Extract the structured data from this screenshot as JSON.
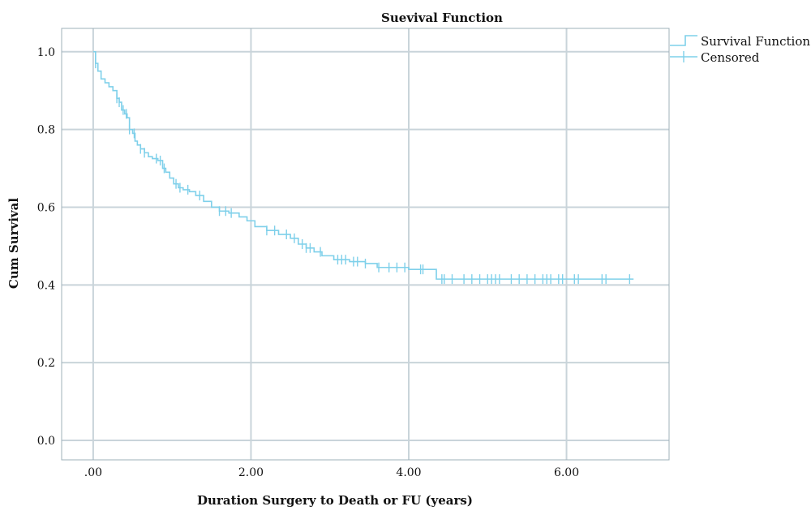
{
  "chart_data": {
    "type": "line",
    "title": "Suevival Function",
    "xlabel": "Duration Surgery to Death or FU (years)",
    "ylabel": "Cum Survival",
    "xlim": [
      -0.4,
      7.3
    ],
    "ylim": [
      -0.05,
      1.06
    ],
    "x_ticks": [
      0,
      2,
      4,
      6
    ],
    "x_tick_labels": [
      ".00",
      "2.00",
      "4.00",
      "6.00"
    ],
    "y_ticks": [
      0.0,
      0.2,
      0.4,
      0.6,
      0.8,
      1.0
    ],
    "y_tick_labels": [
      "0.0",
      "0.2",
      "0.4",
      "0.6",
      "0.8",
      "1.0"
    ],
    "grid": true,
    "legend_position": "top-right",
    "colors": {
      "series": "#7fd0ea",
      "grid": "#c9d4da"
    },
    "series": [
      {
        "name": "Survival Function",
        "kind": "step",
        "x": [
          0,
          0.03,
          0.06,
          0.1,
          0.15,
          0.2,
          0.25,
          0.3,
          0.33,
          0.36,
          0.4,
          0.43,
          0.46,
          0.5,
          0.53,
          0.56,
          0.6,
          0.65,
          0.7,
          0.75,
          0.82,
          0.88,
          0.92,
          0.97,
          1.02,
          1.08,
          1.14,
          1.22,
          1.3,
          1.4,
          1.5,
          1.6,
          1.72,
          1.85,
          1.95,
          2.05,
          2.2,
          2.35,
          2.5,
          2.6,
          2.7,
          2.8,
          2.9,
          3.05,
          3.25,
          3.45,
          3.6,
          4.0,
          4.35,
          6.85
        ],
        "y": [
          1.0,
          0.97,
          0.95,
          0.93,
          0.92,
          0.91,
          0.9,
          0.88,
          0.87,
          0.85,
          0.84,
          0.83,
          0.8,
          0.79,
          0.77,
          0.76,
          0.75,
          0.74,
          0.73,
          0.725,
          0.72,
          0.7,
          0.69,
          0.675,
          0.66,
          0.65,
          0.645,
          0.64,
          0.63,
          0.615,
          0.6,
          0.59,
          0.585,
          0.575,
          0.565,
          0.55,
          0.54,
          0.53,
          0.52,
          0.505,
          0.495,
          0.485,
          0.475,
          0.465,
          0.46,
          0.455,
          0.445,
          0.44,
          0.415,
          0.415
        ]
      },
      {
        "name": "Censored",
        "kind": "censor",
        "x": [
          0.03,
          0.3,
          0.33,
          0.38,
          0.42,
          0.46,
          0.52,
          0.6,
          0.65,
          0.8,
          0.85,
          0.9,
          1.05,
          1.1,
          1.2,
          1.35,
          1.6,
          1.68,
          1.75,
          2.2,
          2.3,
          2.45,
          2.55,
          2.65,
          2.7,
          2.75,
          2.88,
          3.1,
          3.15,
          3.2,
          3.3,
          3.35,
          3.45,
          3.62,
          3.75,
          3.85,
          3.95,
          4.15,
          4.18,
          4.42,
          4.45,
          4.55,
          4.7,
          4.8,
          4.9,
          5.0,
          5.05,
          5.1,
          5.15,
          5.3,
          5.4,
          5.5,
          5.6,
          5.7,
          5.75,
          5.8,
          5.9,
          5.95,
          6.1,
          6.15,
          6.45,
          6.5,
          6.8
        ]
      }
    ]
  }
}
